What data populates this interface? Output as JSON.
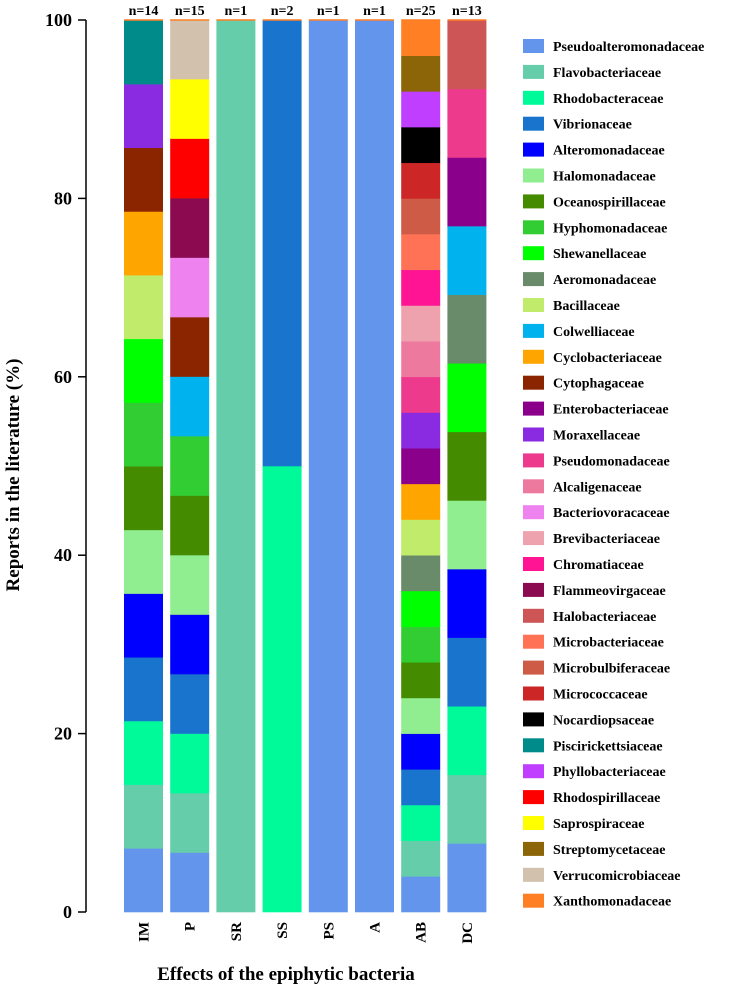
{
  "chart_data": {
    "type": "bar",
    "stacked": true,
    "title": "",
    "xlabel": "Effects of the epiphytic bacteria",
    "ylabel": "Reports in the literature (%)",
    "ylim": [
      0,
      100
    ],
    "yticks": [
      0,
      20,
      40,
      60,
      80,
      100
    ],
    "categories": [
      "IM",
      "P",
      "SR",
      "SS",
      "PS",
      "A",
      "AB",
      "DC"
    ],
    "counts": [
      "n=14",
      "n=15",
      "n=1",
      "n=2",
      "n=1",
      "n=1",
      "n=25",
      "n=13"
    ],
    "legend_position": "right",
    "families": [
      {
        "name": "Pseudoalteromonadaceae",
        "color": "#6495ED"
      },
      {
        "name": "Flavobacteriaceae",
        "color": "#66CDAA"
      },
      {
        "name": "Rhodobacteraceae",
        "color": "#00FA9A"
      },
      {
        "name": "Vibrionaceae",
        "color": "#1874CD"
      },
      {
        "name": "Alteromonadaceae",
        "color": "#0000FF"
      },
      {
        "name": "Halomonadaceae",
        "color": "#90EE90"
      },
      {
        "name": "Oceanospirillaceae",
        "color": "#458B00"
      },
      {
        "name": "Hyphomonadaceae",
        "color": "#32CD32"
      },
      {
        "name": "Shewanellaceae",
        "color": "#00FF00"
      },
      {
        "name": "Aeromonadaceae",
        "color": "#698B69"
      },
      {
        "name": "Bacillaceae",
        "color": "#C0EB6B"
      },
      {
        "name": "Colwelliaceae",
        "color": "#00B2EE"
      },
      {
        "name": "Cyclobacteriaceae",
        "color": "#FFA500"
      },
      {
        "name": "Cytophagaceae",
        "color": "#8B2500"
      },
      {
        "name": "Enterobacteriaceae",
        "color": "#8B008B"
      },
      {
        "name": "Moraxellaceae",
        "color": "#8A2BE2"
      },
      {
        "name": "Pseudomonadaceae",
        "color": "#EE3A8C"
      },
      {
        "name": "Alcaligenaceae",
        "color": "#EE799F"
      },
      {
        "name": "Bacteriovoracaceae",
        "color": "#EE82EE"
      },
      {
        "name": "Brevibacteriaceae",
        "color": "#EEA2AD"
      },
      {
        "name": "Chromatiaceae",
        "color": "#FF1493"
      },
      {
        "name": "Flammeovirgaceae",
        "color": "#8B0A50"
      },
      {
        "name": "Halobacteriaceae",
        "color": "#CD5555"
      },
      {
        "name": "Microbacteriaceae",
        "color": "#FF7256"
      },
      {
        "name": "Microbulbiferaceae",
        "color": "#CD5B45"
      },
      {
        "name": "Micrococcaceae",
        "color": "#CD2626"
      },
      {
        "name": "Nocardiopsaceae",
        "color": "#000000"
      },
      {
        "name": "Piscirickettsiaceae",
        "color": "#008B8B"
      },
      {
        "name": "Phyllobacteriaceae",
        "color": "#BF3EFF"
      },
      {
        "name": "Rhodospirillaceae",
        "color": "#FF0000"
      },
      {
        "name": "Saprospiraceae",
        "color": "#FFFF00"
      },
      {
        "name": "Streptomycetaceae",
        "color": "#8B6508"
      },
      {
        "name": "Verrucomicrobiaceae",
        "color": "#D2C1AD"
      },
      {
        "name": "Xanthomonadaceae",
        "color": "#FF7F24"
      }
    ],
    "series": [
      {
        "category": "IM",
        "segments": [
          {
            "family": "Pseudoalteromonadaceae",
            "value": 7.14
          },
          {
            "family": "Flavobacteriaceae",
            "value": 7.14
          },
          {
            "family": "Rhodobacteraceae",
            "value": 7.14
          },
          {
            "family": "Vibrionaceae",
            "value": 7.14
          },
          {
            "family": "Alteromonadaceae",
            "value": 7.14
          },
          {
            "family": "Halomonadaceae",
            "value": 7.14
          },
          {
            "family": "Oceanospirillaceae",
            "value": 7.14
          },
          {
            "family": "Hyphomonadaceae",
            "value": 7.14
          },
          {
            "family": "Shewanellaceae",
            "value": 7.14
          },
          {
            "family": "Bacillaceae",
            "value": 7.14
          },
          {
            "family": "Cyclobacteriaceae",
            "value": 7.14
          },
          {
            "family": "Cytophagaceae",
            "value": 7.14
          },
          {
            "family": "Moraxellaceae",
            "value": 7.14
          },
          {
            "family": "Piscirickettsiaceae",
            "value": 7.14
          }
        ]
      },
      {
        "category": "P",
        "segments": [
          {
            "family": "Pseudoalteromonadaceae",
            "value": 6.67
          },
          {
            "family": "Flavobacteriaceae",
            "value": 6.67
          },
          {
            "family": "Rhodobacteraceae",
            "value": 6.67
          },
          {
            "family": "Vibrionaceae",
            "value": 6.67
          },
          {
            "family": "Alteromonadaceae",
            "value": 6.67
          },
          {
            "family": "Halomonadaceae",
            "value": 6.67
          },
          {
            "family": "Oceanospirillaceae",
            "value": 6.67
          },
          {
            "family": "Hyphomonadaceae",
            "value": 6.67
          },
          {
            "family": "Colwelliaceae",
            "value": 6.67
          },
          {
            "family": "Cytophagaceae",
            "value": 6.67
          },
          {
            "family": "Bacteriovoracaceae",
            "value": 6.67
          },
          {
            "family": "Flammeovirgaceae",
            "value": 6.67
          },
          {
            "family": "Rhodospirillaceae",
            "value": 6.67
          },
          {
            "family": "Saprospiraceae",
            "value": 6.67
          },
          {
            "family": "Verrucomicrobiaceae",
            "value": 6.67
          }
        ]
      },
      {
        "category": "SR",
        "segments": [
          {
            "family": "Flavobacteriaceae",
            "value": 100
          }
        ]
      },
      {
        "category": "SS",
        "segments": [
          {
            "family": "Rhodobacteraceae",
            "value": 50
          },
          {
            "family": "Vibrionaceae",
            "value": 50
          }
        ]
      },
      {
        "category": "PS",
        "segments": [
          {
            "family": "Pseudoalteromonadaceae",
            "value": 100
          }
        ]
      },
      {
        "category": "A",
        "segments": [
          {
            "family": "Pseudoalteromonadaceae",
            "value": 100
          }
        ]
      },
      {
        "category": "AB",
        "segments": [
          {
            "family": "Pseudoalteromonadaceae",
            "value": 4
          },
          {
            "family": "Flavobacteriaceae",
            "value": 4
          },
          {
            "family": "Rhodobacteraceae",
            "value": 4
          },
          {
            "family": "Vibrionaceae",
            "value": 4
          },
          {
            "family": "Alteromonadaceae",
            "value": 4
          },
          {
            "family": "Halomonadaceae",
            "value": 4
          },
          {
            "family": "Oceanospirillaceae",
            "value": 4
          },
          {
            "family": "Hyphomonadaceae",
            "value": 4
          },
          {
            "family": "Shewanellaceae",
            "value": 4
          },
          {
            "family": "Aeromonadaceae",
            "value": 4
          },
          {
            "family": "Bacillaceae",
            "value": 4
          },
          {
            "family": "Cyclobacteriaceae",
            "value": 4
          },
          {
            "family": "Enterobacteriaceae",
            "value": 4
          },
          {
            "family": "Moraxellaceae",
            "value": 4
          },
          {
            "family": "Pseudomonadaceae",
            "value": 4
          },
          {
            "family": "Alcaligenaceae",
            "value": 4
          },
          {
            "family": "Brevibacteriaceae",
            "value": 4
          },
          {
            "family": "Chromatiaceae",
            "value": 4
          },
          {
            "family": "Microbacteriaceae",
            "value": 4
          },
          {
            "family": "Microbulbiferaceae",
            "value": 4
          },
          {
            "family": "Micrococcaceae",
            "value": 4
          },
          {
            "family": "Nocardiopsaceae",
            "value": 4
          },
          {
            "family": "Phyllobacteriaceae",
            "value": 4
          },
          {
            "family": "Streptomycetaceae",
            "value": 4
          },
          {
            "family": "Xanthomonadaceae",
            "value": 4
          }
        ]
      },
      {
        "category": "DC",
        "segments": [
          {
            "family": "Pseudoalteromonadaceae",
            "value": 7.69
          },
          {
            "family": "Flavobacteriaceae",
            "value": 7.69
          },
          {
            "family": "Rhodobacteraceae",
            "value": 7.69
          },
          {
            "family": "Vibrionaceae",
            "value": 7.69
          },
          {
            "family": "Alteromonadaceae",
            "value": 7.69
          },
          {
            "family": "Halomonadaceae",
            "value": 7.69
          },
          {
            "family": "Oceanospirillaceae",
            "value": 7.69
          },
          {
            "family": "Shewanellaceae",
            "value": 7.69
          },
          {
            "family": "Aeromonadaceae",
            "value": 7.69
          },
          {
            "family": "Colwelliaceae",
            "value": 7.69
          },
          {
            "family": "Enterobacteriaceae",
            "value": 7.69
          },
          {
            "family": "Pseudomonadaceae",
            "value": 7.69
          },
          {
            "family": "Halobacteriaceae",
            "value": 7.69
          }
        ]
      }
    ]
  }
}
